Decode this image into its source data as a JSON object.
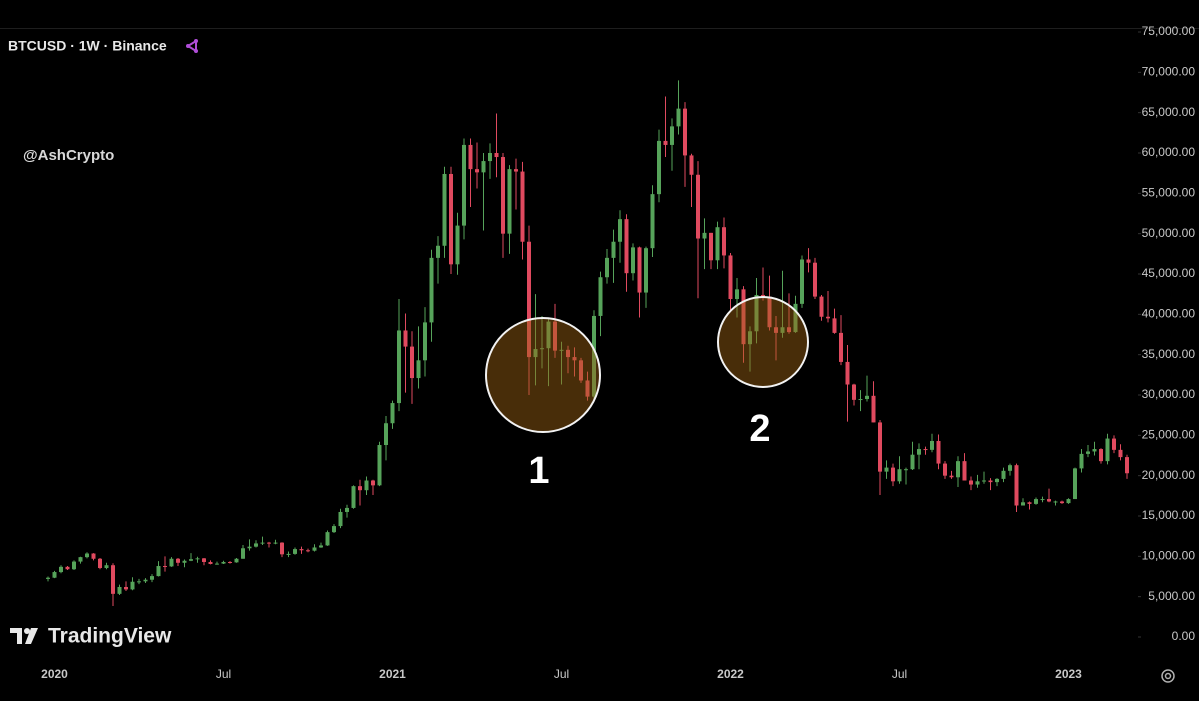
{
  "header": {
    "title": "BTCUSD · 1W · Binance",
    "watermark": "@AshCrypto",
    "logo": "TradingView"
  },
  "chart_data": {
    "type": "candlestick",
    "up_color": "#56a35a",
    "down_color": "#e04a5f",
    "annotations": [
      "1",
      "2"
    ],
    "ylim": [
      0,
      75000
    ],
    "yticks": [
      {
        "value": 0,
        "label": "0.00"
      },
      {
        "value": 5000,
        "label": "5,000.00"
      },
      {
        "value": 10000,
        "label": "10,000.00"
      },
      {
        "value": 15000,
        "label": "15,000.00"
      },
      {
        "value": 20000,
        "label": "20,000.00"
      },
      {
        "value": 25000,
        "label": "25,000.00"
      },
      {
        "value": 30000,
        "label": "30,000.00"
      },
      {
        "value": 35000,
        "label": "35,000.00"
      },
      {
        "value": 40000,
        "label": "40,000.00"
      },
      {
        "value": 45000,
        "label": "45,000.00"
      },
      {
        "value": 50000,
        "label": "50,000.00"
      },
      {
        "value": 55000,
        "label": "55,000.00"
      },
      {
        "value": 60000,
        "label": "60,000.00"
      },
      {
        "value": 65000,
        "label": "65,000.00"
      },
      {
        "value": 70000,
        "label": "70,000.00"
      },
      {
        "value": 75000,
        "label": "75,000.00"
      }
    ],
    "categories": [
      null,
      "2020",
      null,
      null,
      null,
      null,
      null,
      null,
      null,
      null,
      null,
      null,
      null,
      null,
      null,
      null,
      null,
      null,
      null,
      null,
      null,
      null,
      null,
      null,
      null,
      null,
      null,
      "Jul",
      null,
      null,
      null,
      null,
      null,
      null,
      null,
      null,
      null,
      null,
      null,
      null,
      null,
      null,
      null,
      null,
      null,
      null,
      null,
      null,
      null,
      null,
      null,
      null,
      null,
      "2021",
      null,
      null,
      null,
      null,
      null,
      null,
      null,
      null,
      null,
      null,
      null,
      null,
      null,
      null,
      null,
      null,
      null,
      null,
      null,
      null,
      null,
      null,
      null,
      null,
      null,
      "Jul",
      null,
      null,
      null,
      null,
      null,
      null,
      null,
      null,
      null,
      null,
      null,
      null,
      null,
      null,
      null,
      null,
      null,
      null,
      null,
      null,
      null,
      null,
      null,
      null,
      null,
      "2022",
      null,
      null,
      null,
      null,
      null,
      null,
      null,
      null,
      null,
      null,
      null,
      null,
      null,
      null,
      null,
      null,
      null,
      null,
      null,
      null,
      null,
      null,
      null,
      null,
      null,
      "Jul",
      null,
      null,
      null,
      null,
      null,
      null,
      null,
      null,
      null,
      null,
      null,
      null,
      null,
      null,
      null,
      null,
      null,
      null,
      null,
      null,
      null,
      null,
      null,
      null,
      null,
      "2023",
      null,
      null,
      null,
      null,
      null,
      null,
      null,
      null,
      null
    ],
    "candles": [
      [
        7200,
        7500,
        6900,
        7350
      ],
      [
        7350,
        8200,
        7300,
        8050
      ],
      [
        8050,
        8900,
        7900,
        8700
      ],
      [
        8700,
        8800,
        8300,
        8400
      ],
      [
        8400,
        9500,
        8300,
        9350
      ],
      [
        9350,
        9950,
        9100,
        9900
      ],
      [
        9900,
        10500,
        9750,
        10350
      ],
      [
        10350,
        10400,
        9500,
        9700
      ],
      [
        9700,
        9800,
        8400,
        8550
      ],
      [
        8550,
        9200,
        8400,
        8900
      ],
      [
        8900,
        9150,
        3850,
        5350
      ],
      [
        5350,
        6500,
        5200,
        6200
      ],
      [
        6200,
        6900,
        5700,
        5900
      ],
      [
        5900,
        7400,
        5800,
        6850
      ],
      [
        6850,
        7200,
        6550,
        6900
      ],
      [
        6900,
        7300,
        6700,
        7100
      ],
      [
        7100,
        7800,
        6800,
        7550
      ],
      [
        7550,
        9400,
        7500,
        8800
      ],
      [
        8800,
        10000,
        8100,
        8750
      ],
      [
        8750,
        9900,
        8700,
        9700
      ],
      [
        9700,
        9800,
        8800,
        9200
      ],
      [
        9200,
        9600,
        8650,
        9450
      ],
      [
        9450,
        10400,
        9400,
        9650
      ],
      [
        9650,
        9950,
        9200,
        9750
      ],
      [
        9750,
        9800,
        8900,
        9300
      ],
      [
        9300,
        9500,
        9000,
        9050
      ],
      [
        9050,
        9350,
        8950,
        9100
      ],
      [
        9100,
        9450,
        9050,
        9300
      ],
      [
        9300,
        9400,
        9100,
        9250
      ],
      [
        9250,
        9800,
        9200,
        9700
      ],
      [
        9700,
        11400,
        9700,
        11000
      ],
      [
        11000,
        12100,
        10700,
        11200
      ],
      [
        11200,
        12000,
        11100,
        11600
      ],
      [
        11600,
        12450,
        11400,
        11700
      ],
      [
        11700,
        11800,
        11100,
        11650
      ],
      [
        11650,
        12050,
        11500,
        11700
      ],
      [
        11700,
        11750,
        9900,
        10250
      ],
      [
        10250,
        10600,
        9900,
        10300
      ],
      [
        10300,
        11100,
        10200,
        10900
      ],
      [
        10900,
        11200,
        10300,
        10750
      ],
      [
        10750,
        10950,
        10500,
        10700
      ],
      [
        10700,
        11500,
        10600,
        11100
      ],
      [
        11100,
        11700,
        11050,
        11350
      ],
      [
        11350,
        13200,
        11300,
        13000
      ],
      [
        13000,
        14000,
        12900,
        13750
      ],
      [
        13750,
        15900,
        13500,
        15500
      ],
      [
        15500,
        16400,
        14800,
        16000
      ],
      [
        16000,
        18800,
        15900,
        18700
      ],
      [
        18700,
        19500,
        16300,
        18200
      ],
      [
        18200,
        19900,
        17600,
        19400
      ],
      [
        19400,
        19500,
        17600,
        18800
      ],
      [
        18800,
        24200,
        18700,
        23800
      ],
      [
        23800,
        27400,
        21900,
        26500
      ],
      [
        26500,
        29300,
        25800,
        29000
      ],
      [
        29000,
        41900,
        28000,
        38000
      ],
      [
        38000,
        40100,
        30300,
        36000
      ],
      [
        36000,
        37900,
        28900,
        32100
      ],
      [
        32100,
        38500,
        30800,
        34300
      ],
      [
        34300,
        40900,
        32300,
        39000
      ],
      [
        39000,
        48000,
        36600,
        47000
      ],
      [
        47000,
        49700,
        43800,
        48500
      ],
      [
        48500,
        58300,
        47000,
        57400
      ],
      [
        57400,
        58300,
        45000,
        46200
      ],
      [
        46200,
        52600,
        44900,
        51000
      ],
      [
        51000,
        61800,
        49300,
        61000
      ],
      [
        61000,
        61800,
        53300,
        58000
      ],
      [
        58000,
        61300,
        55600,
        57600
      ],
      [
        57600,
        60000,
        50400,
        59000
      ],
      [
        59000,
        61200,
        56800,
        60000
      ],
      [
        60000,
        64900,
        57000,
        59500
      ],
      [
        59500,
        60000,
        47000,
        50000
      ],
      [
        50000,
        58500,
        47500,
        58000
      ],
      [
        58000,
        59300,
        53000,
        57700
      ],
      [
        57700,
        58900,
        46800,
        49000
      ],
      [
        49000,
        51000,
        30000,
        34700
      ],
      [
        34700,
        42500,
        31200,
        35700
      ],
      [
        35700,
        39800,
        33300,
        35800
      ],
      [
        35800,
        39400,
        31100,
        39100
      ],
      [
        39100,
        41300,
        34600,
        35500
      ],
      [
        35500,
        36600,
        31300,
        35600
      ],
      [
        35600,
        36100,
        32700,
        34700
      ],
      [
        34700,
        35900,
        32300,
        34300
      ],
      [
        34300,
        34600,
        31500,
        31800
      ],
      [
        31800,
        32900,
        29300,
        29800
      ],
      [
        29800,
        40500,
        29500,
        39800
      ],
      [
        39800,
        45300,
        37300,
        44600
      ],
      [
        44600,
        48100,
        43800,
        47000
      ],
      [
        47000,
        50500,
        43900,
        49000
      ],
      [
        49000,
        52900,
        46400,
        51800
      ],
      [
        51800,
        52400,
        42800,
        45100
      ],
      [
        45100,
        48800,
        44200,
        48300
      ],
      [
        48300,
        48400,
        39600,
        42700
      ],
      [
        42700,
        48400,
        40800,
        48200
      ],
      [
        48200,
        56000,
        47100,
        54900
      ],
      [
        54900,
        62900,
        53900,
        61500
      ],
      [
        61500,
        67000,
        59500,
        61000
      ],
      [
        61000,
        64300,
        57800,
        63300
      ],
      [
        63300,
        69000,
        62300,
        65500
      ],
      [
        65500,
        66300,
        55800,
        59700
      ],
      [
        59700,
        59900,
        53300,
        57300
      ],
      [
        57300,
        59000,
        42000,
        49400
      ],
      [
        49400,
        51900,
        45600,
        50100
      ],
      [
        50100,
        50100,
        45600,
        46700
      ],
      [
        46700,
        51500,
        45600,
        50800
      ],
      [
        50800,
        52000,
        45700,
        47300
      ],
      [
        47300,
        47600,
        40500,
        41900
      ],
      [
        41900,
        44500,
        39600,
        43100
      ],
      [
        43100,
        43500,
        34000,
        36300
      ],
      [
        36300,
        38500,
        32900,
        37900
      ],
      [
        37900,
        44500,
        36400,
        42400
      ],
      [
        42400,
        45800,
        41700,
        42200
      ],
      [
        42200,
        44800,
        38000,
        38400
      ],
      [
        38400,
        39800,
        34300,
        37700
      ],
      [
        37700,
        45400,
        37100,
        38400
      ],
      [
        38400,
        42600,
        37600,
        37800
      ],
      [
        37800,
        42300,
        37700,
        41300
      ],
      [
        41300,
        47300,
        40800,
        46800
      ],
      [
        46800,
        48200,
        45200,
        46400
      ],
      [
        46400,
        47000,
        41900,
        42200
      ],
      [
        42200,
        42400,
        39200,
        39700
      ],
      [
        39700,
        42900,
        39000,
        39500
      ],
      [
        39500,
        40700,
        37600,
        37700
      ],
      [
        37700,
        39900,
        33700,
        34100
      ],
      [
        34100,
        36200,
        26700,
        31300
      ],
      [
        31300,
        31400,
        28700,
        29400
      ],
      [
        29400,
        30600,
        28000,
        29500
      ],
      [
        29500,
        32400,
        29200,
        29900
      ],
      [
        29900,
        31700,
        26600,
        26600
      ],
      [
        26600,
        26900,
        17600,
        20500
      ],
      [
        20500,
        21900,
        19600,
        21000
      ],
      [
        21000,
        21500,
        18700,
        19300
      ],
      [
        19300,
        22400,
        19000,
        20800
      ],
      [
        20800,
        21000,
        18900,
        20800
      ],
      [
        20800,
        24200,
        20700,
        22600
      ],
      [
        22600,
        24000,
        20800,
        23300
      ],
      [
        23300,
        23600,
        22600,
        23200
      ],
      [
        23200,
        25200,
        22900,
        24300
      ],
      [
        24300,
        25100,
        20800,
        21500
      ],
      [
        21500,
        21800,
        19600,
        20000
      ],
      [
        20000,
        20600,
        19600,
        19800
      ],
      [
        19800,
        22400,
        18600,
        21800
      ],
      [
        21800,
        22800,
        19400,
        19400
      ],
      [
        19400,
        19900,
        18200,
        18900
      ],
      [
        18900,
        20100,
        18500,
        19300
      ],
      [
        19300,
        20500,
        19000,
        19400
      ],
      [
        19400,
        19700,
        18200,
        19200
      ],
      [
        19200,
        19700,
        18700,
        19600
      ],
      [
        19600,
        21000,
        19200,
        20600
      ],
      [
        20600,
        21500,
        20000,
        21300
      ],
      [
        21300,
        21500,
        15500,
        16300
      ],
      [
        16300,
        17200,
        16300,
        16700
      ],
      [
        16700,
        16800,
        15800,
        16500
      ],
      [
        16500,
        17300,
        16400,
        17100
      ],
      [
        17100,
        17400,
        16700,
        17100
      ],
      [
        17100,
        18400,
        16700,
        16800
      ],
      [
        16800,
        16900,
        16300,
        16800
      ],
      [
        16800,
        16900,
        16500,
        16600
      ],
      [
        16600,
        17200,
        16500,
        17100
      ],
      [
        17100,
        21000,
        17100,
        20900
      ],
      [
        20900,
        23300,
        20400,
        22700
      ],
      [
        22700,
        23800,
        22300,
        23000
      ],
      [
        23000,
        24200,
        22500,
        23300
      ],
      [
        23300,
        23400,
        21500,
        21800
      ],
      [
        21800,
        25200,
        21400,
        24600
      ],
      [
        24600,
        25000,
        22800,
        23200
      ],
      [
        23200,
        23900,
        21900,
        22300
      ],
      [
        22300,
        22600,
        19600,
        20300
      ]
    ]
  }
}
